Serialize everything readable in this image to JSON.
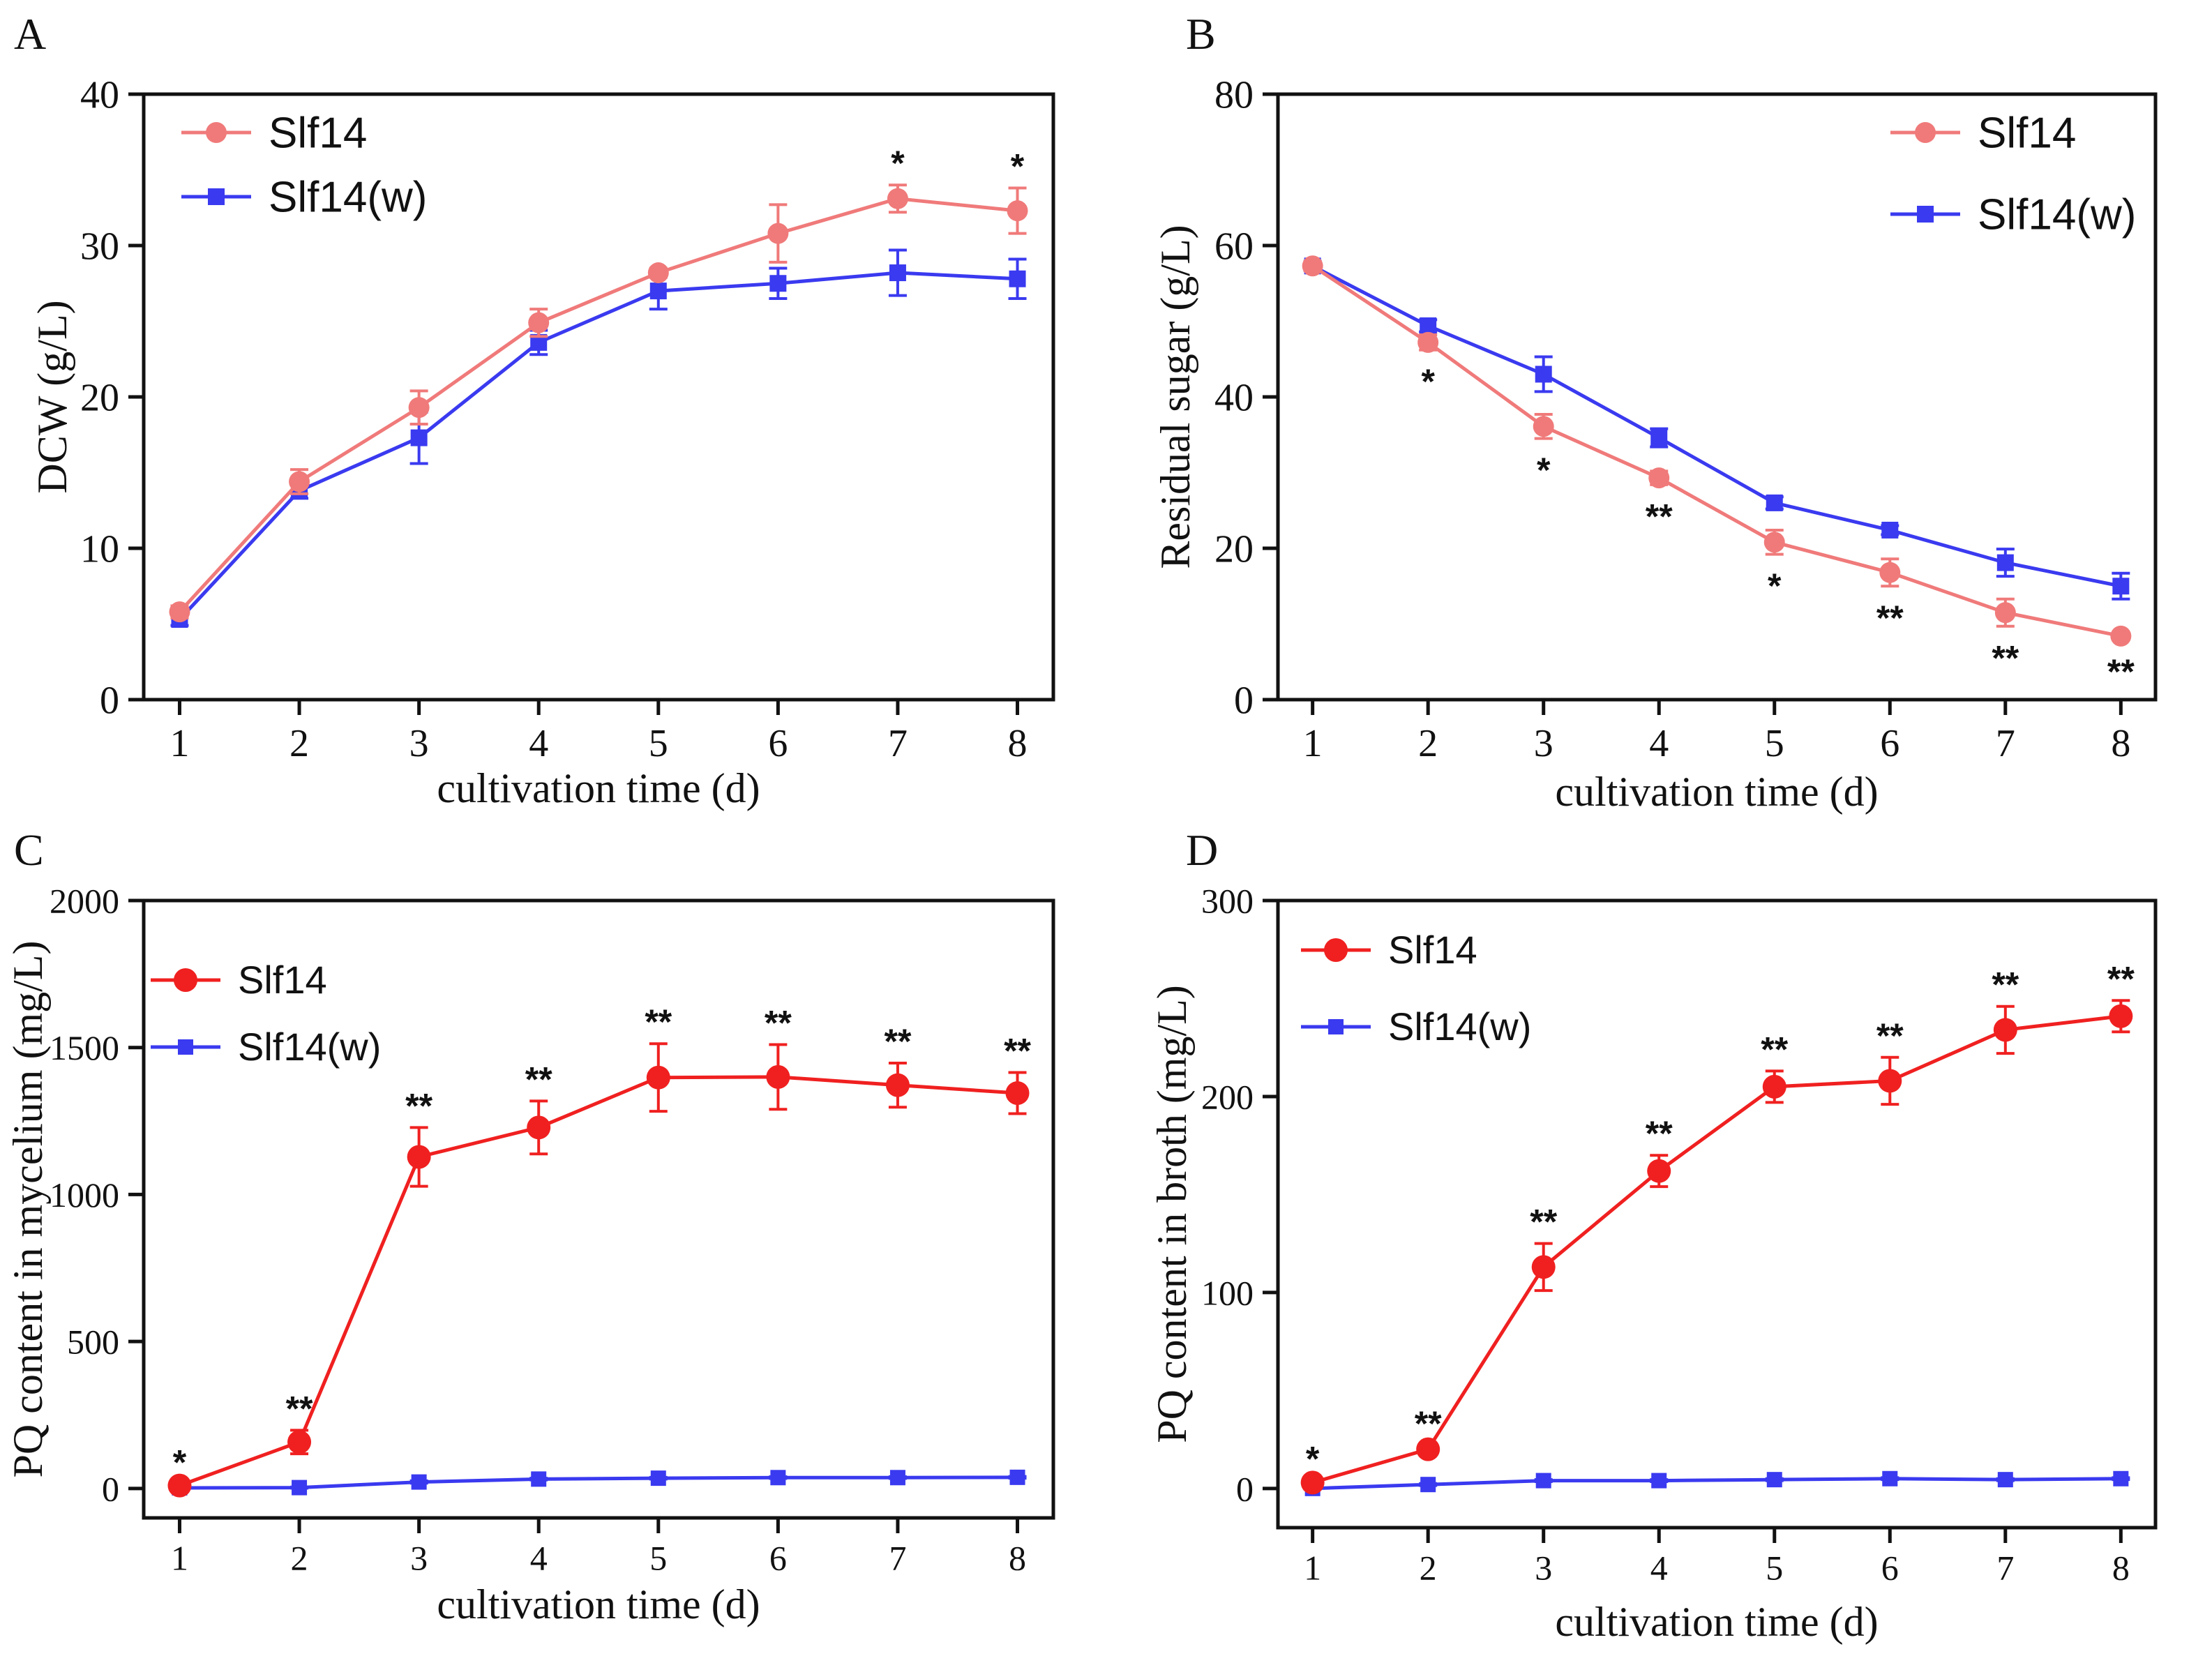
{
  "figure": {
    "description_free": true
  },
  "chart_data": [
    {
      "panel": "A",
      "type": "line",
      "title": "",
      "xlabel": "cultivation time (d)",
      "ylabel": "DCW (g/L)",
      "x": [
        1,
        2,
        3,
        4,
        5,
        6,
        7,
        8
      ],
      "xticks": [
        "1",
        "2",
        "3",
        "4",
        "5",
        "6",
        "7",
        "8"
      ],
      "ylim": [
        0,
        40
      ],
      "yticks": [
        "0",
        "10",
        "20",
        "30",
        "40"
      ],
      "legend_position": "top-left",
      "series": [
        {
          "name": "Slf14",
          "marker": "circle",
          "color": "#f07a7a",
          "values": [
            5.8,
            14.4,
            19.3,
            24.9,
            28.2,
            30.8,
            33.1,
            32.3
          ],
          "errors": [
            0.4,
            0.8,
            1.1,
            0.9,
            0.3,
            1.9,
            0.9,
            1.5
          ]
        },
        {
          "name": "Slf14(w)",
          "marker": "square",
          "color": "#3a3af0",
          "values": [
            5.3,
            13.8,
            17.3,
            23.6,
            27.0,
            27.5,
            28.2,
            27.8
          ],
          "errors": [
            0.4,
            0.5,
            1.7,
            0.8,
            1.2,
            1.0,
            1.5,
            1.3
          ]
        }
      ],
      "annotations": [
        {
          "x": 7,
          "text": "*"
        },
        {
          "x": 8,
          "text": "*"
        }
      ]
    },
    {
      "panel": "B",
      "type": "line",
      "title": "",
      "xlabel": "cultivation time (d)",
      "ylabel": "Residual sugar (g/L)",
      "x": [
        1,
        2,
        3,
        4,
        5,
        6,
        7,
        8
      ],
      "xticks": [
        "1",
        "2",
        "3",
        "4",
        "5",
        "6",
        "7",
        "8"
      ],
      "ylim": [
        0,
        80
      ],
      "yticks": [
        "0",
        "20",
        "40",
        "60",
        "80"
      ],
      "legend_position": "top-right",
      "series": [
        {
          "name": "Slf14",
          "marker": "circle",
          "color": "#f07a7a",
          "values": [
            57.3,
            47.2,
            36.1,
            29.3,
            20.8,
            16.8,
            11.5,
            8.4
          ],
          "errors": [
            0.6,
            1.0,
            1.6,
            0.9,
            1.6,
            1.8,
            1.8,
            0.5
          ]
        },
        {
          "name": "Slf14(w)",
          "marker": "square",
          "color": "#3a3af0",
          "values": [
            57.3,
            49.4,
            43.0,
            34.6,
            26.0,
            22.4,
            18.1,
            15.0
          ],
          "errors": [
            0.6,
            0.8,
            2.3,
            1.2,
            0.8,
            0.6,
            1.8,
            1.7
          ]
        }
      ],
      "annotations": [
        {
          "x": 2,
          "text": "*"
        },
        {
          "x": 3,
          "text": "*"
        },
        {
          "x": 4,
          "text": "**"
        },
        {
          "x": 5,
          "text": "*"
        },
        {
          "x": 6,
          "text": "**"
        },
        {
          "x": 7,
          "text": "**"
        },
        {
          "x": 8,
          "text": "**"
        }
      ]
    },
    {
      "panel": "C",
      "type": "line",
      "title": "",
      "xlabel": "cultivation time (d)",
      "ylabel": "PQ content in mycelium (mg/L)",
      "x": [
        1,
        2,
        3,
        4,
        5,
        6,
        7,
        8
      ],
      "xticks": [
        "1",
        "2",
        "3",
        "4",
        "5",
        "6",
        "7",
        "8"
      ],
      "ylim": [
        -100,
        2000
      ],
      "yticks": [
        "0",
        "500",
        "1000",
        "1500",
        "2000"
      ],
      "legend_position": "top-left",
      "series": [
        {
          "name": "Slf14",
          "marker": "circle",
          "color": "#f02020",
          "values": [
            10,
            158,
            1128,
            1228,
            1398,
            1400,
            1372,
            1345
          ],
          "errors": [
            5,
            40,
            100,
            90,
            115,
            110,
            75,
            70
          ]
        },
        {
          "name": "Slf14(w)",
          "marker": "square",
          "color": "#3a3af0",
          "values": [
            2,
            3,
            22,
            32,
            35,
            37,
            37,
            38
          ],
          "errors": [
            1,
            2,
            4,
            3,
            3,
            3,
            3,
            3
          ]
        }
      ],
      "annotations": [
        {
          "x": 1,
          "text": "*"
        },
        {
          "x": 2,
          "text": "**"
        },
        {
          "x": 3,
          "text": "**"
        },
        {
          "x": 4,
          "text": "**"
        },
        {
          "x": 5,
          "text": "**"
        },
        {
          "x": 6,
          "text": "**"
        },
        {
          "x": 7,
          "text": "**"
        },
        {
          "x": 8,
          "text": "**"
        }
      ]
    },
    {
      "panel": "D",
      "type": "line",
      "title": "",
      "xlabel": "cultivation time (d)",
      "ylabel": "PQ content in broth (mg/L)",
      "x": [
        1,
        2,
        3,
        4,
        5,
        6,
        7,
        8
      ],
      "xticks": [
        "1",
        "2",
        "3",
        "4",
        "5",
        "6",
        "7",
        "8"
      ],
      "ylim": [
        -20,
        300
      ],
      "yticks": [
        "0",
        "100",
        "200",
        "300"
      ],
      "legend_position": "top-left",
      "series": [
        {
          "name": "Slf14",
          "marker": "circle",
          "color": "#f02020",
          "values": [
            3,
            20,
            113,
            162,
            205,
            208,
            234,
            241
          ],
          "errors": [
            1,
            2,
            12,
            8,
            8,
            12,
            12,
            8
          ]
        },
        {
          "name": "Slf14(w)",
          "marker": "square",
          "color": "#3a3af0",
          "values": [
            0,
            2,
            4,
            4,
            4.5,
            5,
            4.5,
            5
          ],
          "errors": [
            0.3,
            0.5,
            0.5,
            0.5,
            0.5,
            0.5,
            0.5,
            0.5
          ]
        }
      ],
      "annotations": [
        {
          "x": 1,
          "text": "*"
        },
        {
          "x": 2,
          "text": "**"
        },
        {
          "x": 3,
          "text": "**"
        },
        {
          "x": 4,
          "text": "**"
        },
        {
          "x": 5,
          "text": "**"
        },
        {
          "x": 6,
          "text": "**"
        },
        {
          "x": 7,
          "text": "**"
        },
        {
          "x": 8,
          "text": "**"
        }
      ]
    }
  ]
}
